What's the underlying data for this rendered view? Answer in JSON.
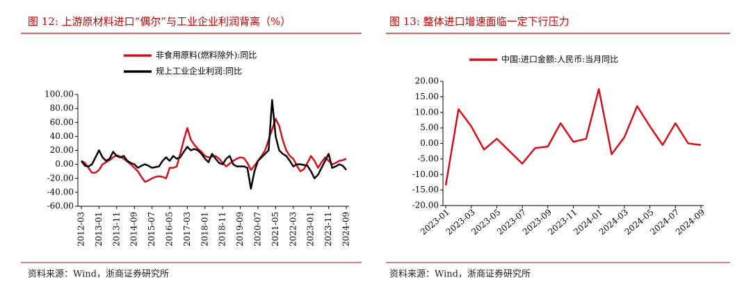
{
  "chart_data": [
    {
      "type": "line",
      "title": "图 12:  上游原材料进口“偶尔”与工业企业利润背离（%）",
      "source": "资料来源：Wind，浙商证券研究所",
      "categories": [
        "2012-03",
        null,
        null,
        null,
        null,
        "2013-01",
        null,
        null,
        null,
        null,
        "2013-11",
        null,
        null,
        null,
        null,
        "2014-09",
        null,
        null,
        null,
        null,
        "2015-07",
        null,
        null,
        null,
        null,
        "2016-05",
        null,
        null,
        null,
        null,
        "2017-03",
        null,
        null,
        null,
        null,
        "2018-01",
        null,
        null,
        null,
        null,
        "2018-11",
        null,
        null,
        null,
        null,
        "2019-09",
        null,
        null,
        null,
        null,
        "2020-07",
        null,
        null,
        null,
        null,
        "2021-05",
        null,
        null,
        null,
        null,
        "2022-03",
        null,
        null,
        null,
        null,
        "2023-01",
        null,
        null,
        null,
        null,
        "2023-11",
        null,
        null,
        null,
        null,
        "2024-09"
      ],
      "series": [
        {
          "name": "非食用原料(燃料除外):同比",
          "color": "#d0101a",
          "values": [
            5,
            2,
            -5,
            -12,
            -12,
            -8,
            0,
            3,
            6,
            10,
            13,
            11,
            8,
            4,
            0,
            -5,
            -10,
            -18,
            -25,
            -23,
            -20,
            -18,
            -17,
            -18,
            -20,
            -5,
            -5,
            -3,
            15,
            35,
            52,
            35,
            28,
            22,
            18,
            12,
            10,
            11,
            12,
            8,
            2,
            -3,
            1,
            5,
            8,
            10,
            9,
            2,
            -8,
            -2,
            5,
            12,
            20,
            35,
            50,
            65,
            55,
            35,
            20,
            12,
            8,
            -2,
            -10,
            -7,
            2,
            12,
            5,
            -5,
            3,
            10,
            5,
            0,
            2,
            5,
            6,
            8
          ]
        },
        {
          "name": "规上工业企业利润:同比",
          "color": "#000000",
          "values": [
            5,
            -2,
            -3,
            0,
            10,
            20,
            10,
            5,
            8,
            18,
            12,
            10,
            12,
            5,
            2,
            0,
            -5,
            -2,
            0,
            -2,
            -5,
            -4,
            -3,
            5,
            10,
            5,
            12,
            8,
            10,
            18,
            25,
            20,
            22,
            20,
            15,
            8,
            3,
            15,
            8,
            2,
            0,
            8,
            12,
            0,
            -3,
            -3,
            -3,
            -5,
            -35,
            -10,
            5,
            10,
            15,
            20,
            92,
            40,
            20,
            15,
            12,
            5,
            -3,
            0,
            0,
            -1,
            -2,
            -10,
            -20,
            -15,
            -5,
            5,
            15,
            -5,
            -3,
            0,
            -2,
            -8
          ]
        }
      ],
      "ylim": [
        -60,
        100
      ],
      "yticks": [
        {
          "value": -60,
          "label": "-60.00"
        },
        {
          "value": -40,
          "label": "-40.00"
        },
        {
          "value": -20,
          "label": "-20.00"
        },
        {
          "value": 0,
          "label": "0.00"
        },
        {
          "value": 20,
          "label": "20.00"
        },
        {
          "value": 40,
          "label": "40.00"
        },
        {
          "value": 60,
          "label": "60.00"
        },
        {
          "value": 80,
          "label": "80.00"
        },
        {
          "value": 100,
          "label": "100.00"
        }
      ],
      "grid": false
    },
    {
      "type": "line",
      "title": "图 13:  整体进口增速面临一定下行压力",
      "source": "资料来源：Wind，浙商证券研究所",
      "categories": [
        "2023-01",
        null,
        "2023-03",
        null,
        "2023-05",
        null,
        "2023-07",
        null,
        "2023-09",
        null,
        "2023-11",
        null,
        "2024-01",
        null,
        "2024-03",
        null,
        "2024-05",
        null,
        "2024-07",
        null,
        "2024-09"
      ],
      "series": [
        {
          "name": "中国:进口金额:人民币:当月同比",
          "color": "#d0101a",
          "values": [
            -13.5,
            11,
            5.5,
            -2,
            1.5,
            -2.5,
            -6.5,
            -1.5,
            -1,
            6.5,
            0.5,
            1.5,
            17.5,
            -3.5,
            2,
            12,
            5.5,
            -0.5,
            6.5,
            0,
            -0.5
          ]
        }
      ],
      "ylim": [
        -20,
        20
      ],
      "yticks": [
        {
          "value": -20,
          "label": "-20.00"
        },
        {
          "value": -15,
          "label": "-15.00"
        },
        {
          "value": -10,
          "label": "-10.00"
        },
        {
          "value": -5,
          "label": "-5.00"
        },
        {
          "value": 0,
          "label": "0.00"
        },
        {
          "value": 5,
          "label": "5.00"
        },
        {
          "value": 10,
          "label": "10.00"
        },
        {
          "value": 15,
          "label": "15.00"
        },
        {
          "value": 20,
          "label": "20.00"
        }
      ],
      "grid": false
    }
  ]
}
